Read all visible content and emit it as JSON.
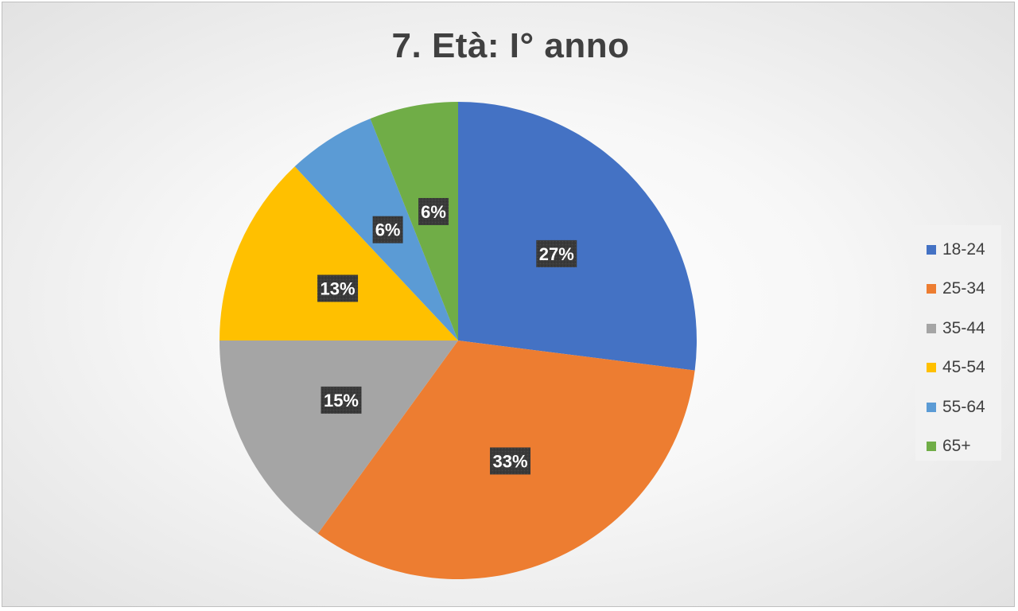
{
  "chart_data": {
    "type": "pie",
    "title": "7. Età: I° anno",
    "categories": [
      "18-24",
      "25-34",
      "35-44",
      "45-54",
      "55-64",
      "65+"
    ],
    "values": [
      27,
      33,
      15,
      13,
      6,
      6
    ],
    "value_labels": [
      "27%",
      "33%",
      "15%",
      "13%",
      "6%",
      "6%"
    ],
    "colors": [
      "#4472C4",
      "#ED7D31",
      "#A5A5A5",
      "#FFC000",
      "#5B9BD5",
      "#70AD47"
    ],
    "legend_position": "right",
    "start_angle": "12 o'clock",
    "direction": "clockwise"
  }
}
